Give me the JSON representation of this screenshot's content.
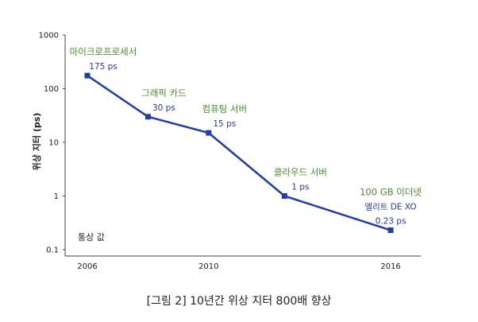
{
  "chart_data": {
    "type": "line",
    "title": "",
    "ylabel": "위상 지터 (ps)",
    "xlabel": "",
    "yscale": "log",
    "ylim": [
      0.1,
      1000
    ],
    "yticks": [
      "1000",
      "100",
      "10",
      "1",
      "0.1"
    ],
    "xticks": [
      "2006",
      "2010",
      "2016"
    ],
    "xlim": [
      2005,
      2017
    ],
    "line_color": "#1f3fa6",
    "category_color": "#4a8a2a",
    "value_color": "#2b3aa0",
    "points": [
      {
        "x": 2006,
        "y": 175,
        "category": "마이크로프로세서",
        "value_label": "175 ps"
      },
      {
        "x": 2008,
        "y": 30,
        "category": "그래픽 카드",
        "value_label": "30 ps"
      },
      {
        "x": 2010,
        "y": 15,
        "category": "컴퓨팅 서버",
        "value_label": "15 ps"
      },
      {
        "x": 2012.5,
        "y": 1,
        "category": "클라우드 서버",
        "value_label": "1 ps"
      },
      {
        "x": 2016,
        "y": 0.23,
        "category": "100 GB 이더넷\n엘리트 DE XO",
        "value_label": "0.23 ps"
      }
    ],
    "annotation": "통상 값"
  },
  "caption": "[그림 2] 10년간 위상 지터 800배 향상"
}
